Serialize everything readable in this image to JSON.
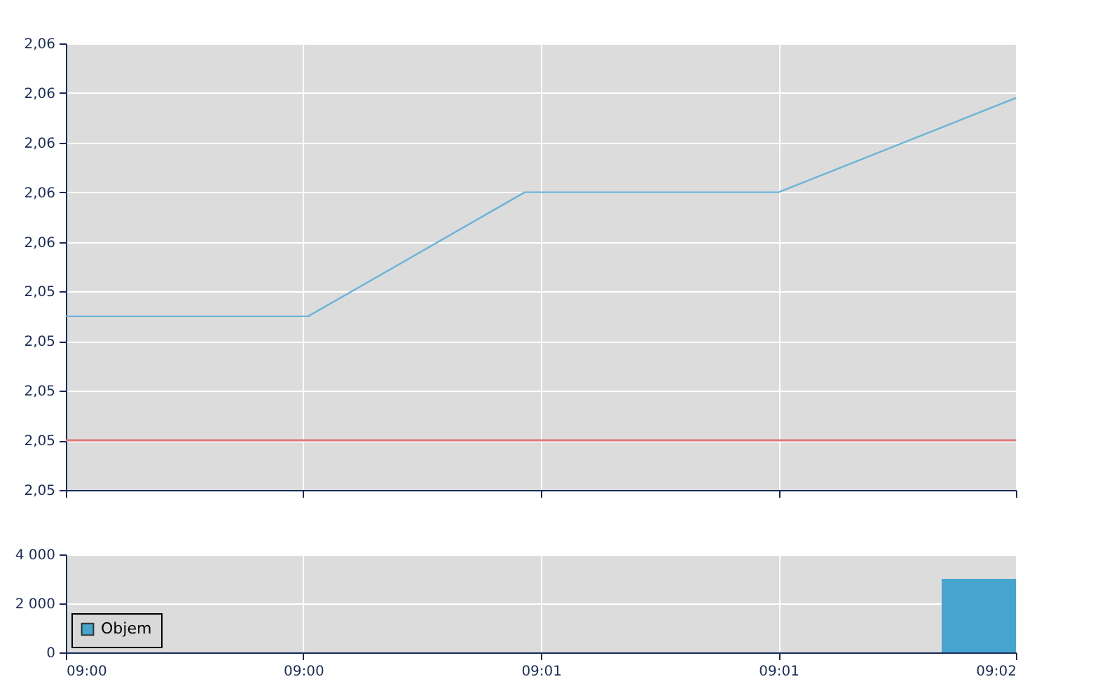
{
  "chart_data": [
    {
      "type": "line",
      "x": [
        9,
        9.0085,
        9.0161,
        9.025,
        9.03333
      ],
      "series": [
        {
          "color": "#6ab4d8",
          "values": [
            2.0535,
            2.0535,
            2.056,
            2.056,
            2.0579
          ]
        }
      ],
      "xlim": [
        9,
        9.03333
      ],
      "ylim": [
        2.05,
        2.059
      ],
      "yticks": [
        {
          "value": 2.05,
          "label": "2,05"
        },
        {
          "value": 2.051,
          "label": "2,05"
        },
        {
          "value": 2.052,
          "label": "2,05"
        },
        {
          "value": 2.053,
          "label": "2,05"
        },
        {
          "value": 2.054,
          "label": "2,05"
        },
        {
          "value": 2.055,
          "label": "2,06"
        },
        {
          "value": 2.056,
          "label": "2,06"
        },
        {
          "value": 2.057,
          "label": "2,06"
        },
        {
          "value": 2.058,
          "label": "2,06"
        },
        {
          "value": 2.059,
          "label": "2,06"
        }
      ],
      "xticks": [
        {
          "value": 9,
          "label": null
        },
        {
          "value": 9.00833,
          "label": null
        },
        {
          "value": 9.01667,
          "label": null
        },
        {
          "value": 9.025,
          "label": null
        },
        {
          "value": 9.03333,
          "label": null
        }
      ],
      "ref_lines": [
        {
          "axis": "y",
          "value": 2.051,
          "color": "#e07878"
        }
      ],
      "grid": true,
      "tick_labels": "y"
    },
    {
      "type": "bar",
      "x": [
        9.03333
      ],
      "series": [
        {
          "name": "Objem",
          "color": "#45a5cf",
          "values": [
            3000
          ]
        }
      ],
      "xlim": [
        9,
        9.03333
      ],
      "ylim": [
        0,
        4000
      ],
      "yticks": [
        {
          "value": 0,
          "label": "0"
        },
        {
          "value": 2000,
          "label": "2 000"
        },
        {
          "value": 4000,
          "label": "4 000"
        }
      ],
      "xticks": [
        {
          "value": 9,
          "label": "09:00"
        },
        {
          "value": 9.00833,
          "label": "09:00"
        },
        {
          "value": 9.01667,
          "label": "09:01"
        },
        {
          "value": 9.025,
          "label": "09:01"
        },
        {
          "value": 9.03333,
          "label": "09:02"
        }
      ],
      "grid": true,
      "legend": "bottom left"
    }
  ]
}
